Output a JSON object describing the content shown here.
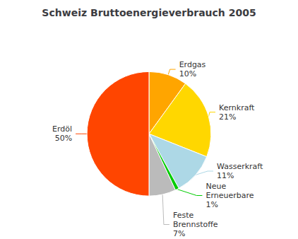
{
  "chart_data": {
    "type": "pie",
    "title": "Schweiz Bruttoenergieverbrauch 2005",
    "categories": [
      "Erdgas\n10%",
      "Kernkraft\n21%",
      "Wasserkraft\n11%",
      "Neue\nErneuerbare\n1%",
      "Feste\nBrennstoffe\n7%",
      "Erdöl\n50%"
    ],
    "values": [
      10,
      21,
      11,
      1,
      7,
      50
    ],
    "colors": [
      "#FFA500",
      "#FFD700",
      "#ADD8E6",
      "#00CC00",
      "#BBBBBB",
      "#FF4500"
    ]
  }
}
